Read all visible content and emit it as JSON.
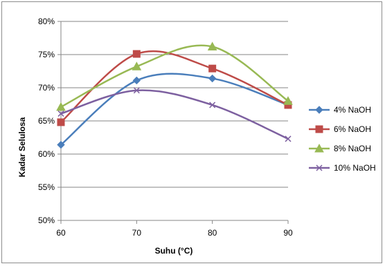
{
  "chart_data": {
    "type": "line",
    "title": "",
    "xlabel": "Suhu (°C)",
    "ylabel": "Kadar Selulosa",
    "x": [
      60,
      70,
      80,
      90
    ],
    "x_ticks": [
      "60",
      "70",
      "80",
      "90"
    ],
    "ylim": [
      0.5,
      0.8
    ],
    "y_ticks": [
      "50%",
      "55%",
      "60%",
      "65%",
      "70%",
      "75%",
      "80%"
    ],
    "grid": "horizontal",
    "legend_position": "right",
    "smooth": true,
    "series": [
      {
        "name": "4% NaOH",
        "values": [
          0.614,
          0.711,
          0.714,
          0.674
        ],
        "color": "#4a7ebb",
        "marker": "diamond"
      },
      {
        "name": "6% NaOH",
        "values": [
          0.648,
          0.751,
          0.729,
          0.674
        ],
        "color": "#be4b48",
        "marker": "square"
      },
      {
        "name": "8% NaOH",
        "values": [
          0.671,
          0.732,
          0.762,
          0.68
        ],
        "color": "#98b954",
        "marker": "triangle"
      },
      {
        "name": "10% NaOH",
        "values": [
          0.661,
          0.696,
          0.674,
          0.623
        ],
        "color": "#7d60a0",
        "marker": "x"
      }
    ]
  }
}
